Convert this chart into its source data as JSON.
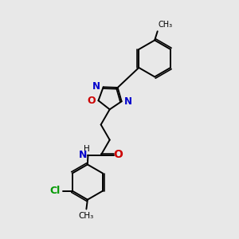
{
  "background_color": "#e8e8e8",
  "bond_color": "#000000",
  "atom_colors": {
    "N": "#0000cc",
    "O": "#cc0000",
    "Cl": "#009900",
    "C": "#000000",
    "H": "#555555"
  },
  "line_width": 1.4,
  "figsize": [
    3.0,
    3.0
  ],
  "dpi": 100
}
